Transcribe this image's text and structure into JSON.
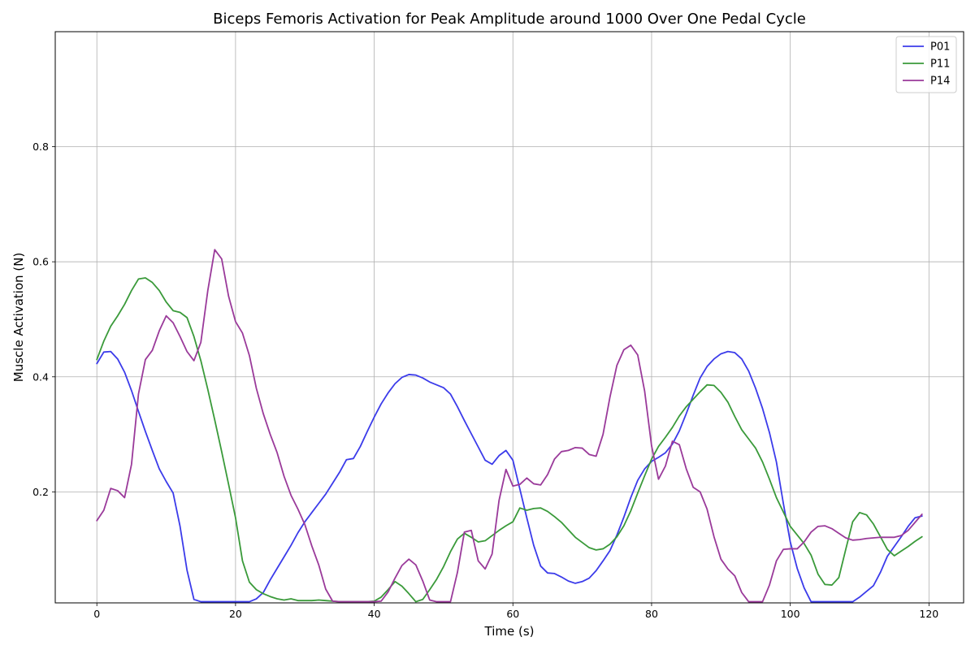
{
  "chart_data": {
    "type": "line",
    "title": "Biceps Femoris Activation for Peak Amplitude around 1000 Over One Pedal Cycle",
    "xlabel": "Time (s)",
    "ylabel": "Muscle Activation (N)",
    "xlim": [
      -6,
      125
    ],
    "ylim": [
      0.007,
      1.0
    ],
    "xticks": [
      0,
      20,
      40,
      60,
      80,
      100,
      120
    ],
    "xtick_labels": [
      "0",
      "20",
      "40",
      "60",
      "80",
      "100",
      "120"
    ],
    "yticks": [
      0.2,
      0.4,
      0.6,
      0.8
    ],
    "ytick_labels": [
      "0.2",
      "0.4",
      "0.6",
      "0.8"
    ],
    "grid": true,
    "legend_position": "top-right",
    "series": [
      {
        "name": "P01",
        "color": "#3b3bea",
        "x": [
          0,
          1,
          2,
          3,
          4,
          5,
          6,
          7,
          8,
          9,
          10,
          11,
          12,
          13,
          14,
          15,
          16,
          17,
          18,
          19,
          20,
          21,
          22,
          23,
          24,
          25,
          26,
          27,
          28,
          29,
          30,
          31,
          32,
          33,
          34,
          35,
          36,
          37,
          38,
          39,
          40,
          41,
          42,
          43,
          44,
          45,
          46,
          47,
          48,
          49,
          50,
          51,
          52,
          53,
          54,
          55,
          56,
          57,
          58,
          59,
          60,
          61,
          62,
          63,
          64,
          65,
          66,
          67,
          68,
          69,
          70,
          71,
          72,
          73,
          74,
          75,
          76,
          77,
          78,
          79,
          80,
          81,
          82,
          83,
          84,
          85,
          86,
          87,
          88,
          89,
          90,
          91,
          92,
          93,
          94,
          95,
          96,
          97,
          98,
          99,
          100,
          101,
          102,
          103,
          104,
          105,
          106,
          107,
          108,
          109,
          110,
          111,
          112,
          113,
          114,
          115,
          116,
          117,
          118,
          119
        ],
        "y": [
          0.423,
          0.443,
          0.444,
          0.431,
          0.408,
          0.376,
          0.34,
          0.305,
          0.272,
          0.24,
          0.218,
          0.198,
          0.14,
          0.064,
          0.013,
          0.009,
          0.009,
          0.009,
          0.009,
          0.009,
          0.009,
          0.009,
          0.009,
          0.014,
          0.025,
          0.047,
          0.067,
          0.087,
          0.107,
          0.129,
          0.148,
          0.164,
          0.18,
          0.196,
          0.215,
          0.234,
          0.256,
          0.258,
          0.279,
          0.305,
          0.33,
          0.353,
          0.372,
          0.388,
          0.399,
          0.404,
          0.403,
          0.398,
          0.391,
          0.386,
          0.381,
          0.37,
          0.348,
          0.324,
          0.301,
          0.278,
          0.255,
          0.248,
          0.263,
          0.272,
          0.255,
          0.205,
          0.155,
          0.107,
          0.071,
          0.059,
          0.058,
          0.052,
          0.045,
          0.041,
          0.044,
          0.05,
          0.063,
          0.08,
          0.098,
          0.125,
          0.156,
          0.19,
          0.22,
          0.24,
          0.253,
          0.26,
          0.268,
          0.283,
          0.306,
          0.336,
          0.368,
          0.398,
          0.418,
          0.431,
          0.44,
          0.444,
          0.442,
          0.431,
          0.41,
          0.38,
          0.345,
          0.303,
          0.252,
          0.18,
          0.113,
          0.067,
          0.033,
          0.009,
          0.009,
          0.009,
          0.009,
          0.009,
          0.009,
          0.009,
          0.017,
          0.027,
          0.037,
          0.06,
          0.088,
          0.105,
          0.122,
          0.14,
          0.155,
          0.158
        ]
      },
      {
        "name": "P11",
        "color": "#3a9a3a",
        "x": [
          0,
          1,
          2,
          3,
          4,
          5,
          6,
          7,
          8,
          9,
          10,
          11,
          12,
          13,
          14,
          15,
          16,
          17,
          18,
          19,
          20,
          21,
          22,
          23,
          24,
          25,
          26,
          27,
          28,
          29,
          30,
          31,
          32,
          33,
          34,
          35,
          36,
          37,
          38,
          39,
          40,
          41,
          42,
          43,
          44,
          45,
          46,
          47,
          48,
          49,
          50,
          51,
          52,
          53,
          54,
          55,
          56,
          57,
          58,
          59,
          60,
          61,
          62,
          63,
          64,
          65,
          66,
          67,
          68,
          69,
          70,
          71,
          72,
          73,
          74,
          75,
          76,
          77,
          78,
          79,
          80,
          81,
          82,
          83,
          84,
          85,
          86,
          87,
          88,
          89,
          90,
          91,
          92,
          93,
          94,
          95,
          96,
          97,
          98,
          99,
          100,
          101,
          102,
          103,
          104,
          105,
          106,
          107,
          108,
          109,
          110,
          111,
          112,
          113,
          114,
          115,
          116,
          117,
          118,
          119
        ],
        "y": [
          0.43,
          0.462,
          0.488,
          0.506,
          0.526,
          0.55,
          0.57,
          0.572,
          0.564,
          0.55,
          0.53,
          0.515,
          0.512,
          0.503,
          0.47,
          0.428,
          0.378,
          0.325,
          0.27,
          0.213,
          0.155,
          0.08,
          0.043,
          0.03,
          0.023,
          0.018,
          0.014,
          0.012,
          0.014,
          0.011,
          0.011,
          0.011,
          0.012,
          0.011,
          0.01,
          0.009,
          0.009,
          0.009,
          0.009,
          0.009,
          0.01,
          0.017,
          0.03,
          0.044,
          0.036,
          0.023,
          0.009,
          0.013,
          0.03,
          0.048,
          0.07,
          0.096,
          0.118,
          0.128,
          0.121,
          0.113,
          0.115,
          0.124,
          0.133,
          0.141,
          0.148,
          0.172,
          0.168,
          0.171,
          0.172,
          0.166,
          0.157,
          0.147,
          0.134,
          0.121,
          0.112,
          0.103,
          0.099,
          0.101,
          0.109,
          0.122,
          0.141,
          0.167,
          0.198,
          0.228,
          0.257,
          0.279,
          0.295,
          0.312,
          0.332,
          0.348,
          0.361,
          0.374,
          0.386,
          0.385,
          0.373,
          0.356,
          0.331,
          0.308,
          0.292,
          0.276,
          0.252,
          0.222,
          0.19,
          0.165,
          0.14,
          0.125,
          0.11,
          0.09,
          0.057,
          0.039,
          0.038,
          0.051,
          0.1,
          0.148,
          0.164,
          0.16,
          0.144,
          0.122,
          0.1,
          0.089,
          0.097,
          0.105,
          0.114,
          0.122
        ]
      },
      {
        "name": "P14",
        "color": "#9a3a9a",
        "x": [
          0,
          1,
          2,
          3,
          4,
          5,
          6,
          7,
          8,
          9,
          10,
          11,
          12,
          13,
          14,
          15,
          16,
          17,
          18,
          19,
          20,
          21,
          22,
          23,
          24,
          25,
          26,
          27,
          28,
          29,
          30,
          31,
          32,
          33,
          34,
          35,
          36,
          37,
          38,
          39,
          40,
          41,
          42,
          43,
          44,
          45,
          46,
          47,
          48,
          49,
          50,
          51,
          52,
          53,
          54,
          55,
          56,
          57,
          58,
          59,
          60,
          61,
          62,
          63,
          64,
          65,
          66,
          67,
          68,
          69,
          70,
          71,
          72,
          73,
          74,
          75,
          76,
          77,
          78,
          79,
          80,
          81,
          82,
          83,
          84,
          85,
          86,
          87,
          88,
          89,
          90,
          91,
          92,
          93,
          94,
          95,
          96,
          97,
          98,
          99,
          100,
          101,
          102,
          103,
          104,
          105,
          106,
          107,
          108,
          109,
          110,
          111,
          112,
          113,
          114,
          115,
          116,
          117,
          118,
          119
        ],
        "y": [
          0.15,
          0.168,
          0.206,
          0.202,
          0.19,
          0.248,
          0.37,
          0.43,
          0.446,
          0.48,
          0.506,
          0.494,
          0.47,
          0.444,
          0.428,
          0.46,
          0.55,
          0.621,
          0.605,
          0.54,
          0.496,
          0.476,
          0.437,
          0.38,
          0.336,
          0.3,
          0.268,
          0.227,
          0.194,
          0.17,
          0.143,
          0.106,
          0.073,
          0.031,
          0.01,
          0.009,
          0.009,
          0.009,
          0.009,
          0.009,
          0.009,
          0.01,
          0.026,
          0.05,
          0.072,
          0.083,
          0.073,
          0.045,
          0.012,
          0.009,
          0.009,
          0.009,
          0.06,
          0.13,
          0.133,
          0.08,
          0.066,
          0.092,
          0.185,
          0.239,
          0.21,
          0.213,
          0.224,
          0.214,
          0.212,
          0.23,
          0.257,
          0.27,
          0.272,
          0.277,
          0.276,
          0.265,
          0.262,
          0.3,
          0.365,
          0.42,
          0.447,
          0.455,
          0.438,
          0.375,
          0.28,
          0.222,
          0.245,
          0.288,
          0.282,
          0.24,
          0.208,
          0.2,
          0.17,
          0.122,
          0.083,
          0.066,
          0.054,
          0.025,
          0.009,
          0.009,
          0.009,
          0.038,
          0.08,
          0.1,
          0.101,
          0.101,
          0.113,
          0.13,
          0.14,
          0.141,
          0.136,
          0.128,
          0.12,
          0.116,
          0.117,
          0.119,
          0.12,
          0.121,
          0.121,
          0.121,
          0.124,
          0.133,
          0.147,
          0.161
        ]
      }
    ]
  }
}
